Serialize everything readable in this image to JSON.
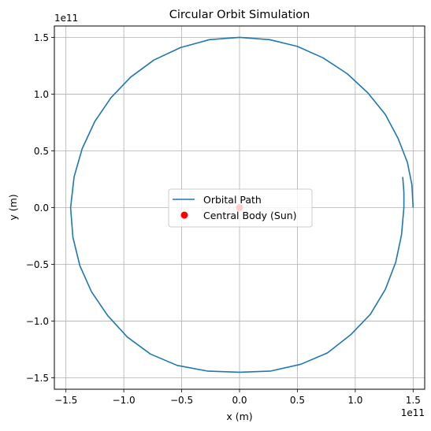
{
  "chart_data": {
    "type": "line",
    "title": "Circular Orbit Simulation",
    "xlabel": "x (m)",
    "ylabel": "y (m)",
    "x_offset_label": "1e11",
    "y_offset_label": "1e11",
    "xlim": [
      -160000000000.0,
      160000000000.0
    ],
    "ylim": [
      -160000000000.0,
      160000000000.0
    ],
    "grid": true,
    "legend_position": "center",
    "x_ticks": [
      {
        "value": -150000000000.0,
        "label": "−1.5"
      },
      {
        "value": -100000000000.0,
        "label": "−1.0"
      },
      {
        "value": -50000000000.0,
        "label": "−0.5"
      },
      {
        "value": 0,
        "label": "0.0"
      },
      {
        "value": 50000000000.0,
        "label": "0.5"
      },
      {
        "value": 100000000000.0,
        "label": "1.0"
      },
      {
        "value": 150000000000.0,
        "label": "1.5"
      }
    ],
    "y_ticks": [
      {
        "value": 150000000000.0,
        "label": "1.5"
      },
      {
        "value": 100000000000.0,
        "label": "1.0"
      },
      {
        "value": 50000000000.0,
        "label": "0.5"
      },
      {
        "value": 0,
        "label": "0.0"
      },
      {
        "value": -50000000000.0,
        "label": "−0.5"
      },
      {
        "value": -100000000000.0,
        "label": "−1.0"
      },
      {
        "value": -150000000000.0,
        "label": "−1.5"
      }
    ],
    "series": [
      {
        "name": "Orbital Path",
        "color": "#1f77b4",
        "kind": "line",
        "points": [
          [
            150000000000.0,
            0.0
          ],
          [
            149000000000.0,
            20000000000.0
          ],
          [
            145000000000.0,
            40000000000.0
          ],
          [
            137000000000.0,
            61000000000.0
          ],
          [
            126000000000.0,
            82000000000.0
          ],
          [
            111000000000.0,
            101000000000.0
          ],
          [
            93000000000.0,
            118000000000.0
          ],
          [
            72000000000.0,
            132000000000.0
          ],
          [
            50000000000.0,
            142000000000.0
          ],
          [
            26000000000.0,
            148000000000.0
          ],
          [
            0.0,
            150000000000.0
          ],
          [
            -26000000000.0,
            148000000000.0
          ],
          [
            -51000000000.0,
            141000000000.0
          ],
          [
            -74000000000.0,
            130000000000.0
          ],
          [
            -94000000000.0,
            115000000000.0
          ],
          [
            -111000000000.0,
            97000000000.0
          ],
          [
            -125000000000.0,
            76000000000.0
          ],
          [
            -136000000000.0,
            52000000000.0
          ],
          [
            -143000000000.0,
            27000000000.0
          ],
          [
            -146000000000.0,
            0.0
          ],
          [
            -144000000000.0,
            -26000000000.0
          ],
          [
            -138000000000.0,
            -51000000000.0
          ],
          [
            -128000000000.0,
            -74000000000.0
          ],
          [
            -114000000000.0,
            -95000000000.0
          ],
          [
            -97000000000.0,
            -114000000000.0
          ],
          [
            -77000000000.0,
            -129000000000.0
          ],
          [
            -54000000000.0,
            -139000000000.0
          ],
          [
            -28000000000.0,
            -144000000000.0
          ],
          [
            0.0,
            -145000000000.0
          ],
          [
            27000000000.0,
            -144000000000.0
          ],
          [
            53000000000.0,
            -138000000000.0
          ],
          [
            76000000000.0,
            -128000000000.0
          ],
          [
            96000000000.0,
            -112000000000.0
          ],
          [
            113000000000.0,
            -94000000000.0
          ],
          [
            126000000000.0,
            -72000000000.0
          ],
          [
            135000000000.0,
            -48000000000.0
          ],
          [
            140000000000.0,
            -24000000000.0
          ],
          [
            142000000000.0,
            0.0
          ],
          [
            142000000000.0,
            14000000000.0
          ],
          [
            141000000000.0,
            27000000000.0
          ]
        ]
      },
      {
        "name": "Central Body (Sun)",
        "color": "#ff0000",
        "kind": "scatter",
        "points": [
          [
            0,
            0
          ]
        ]
      }
    ]
  }
}
